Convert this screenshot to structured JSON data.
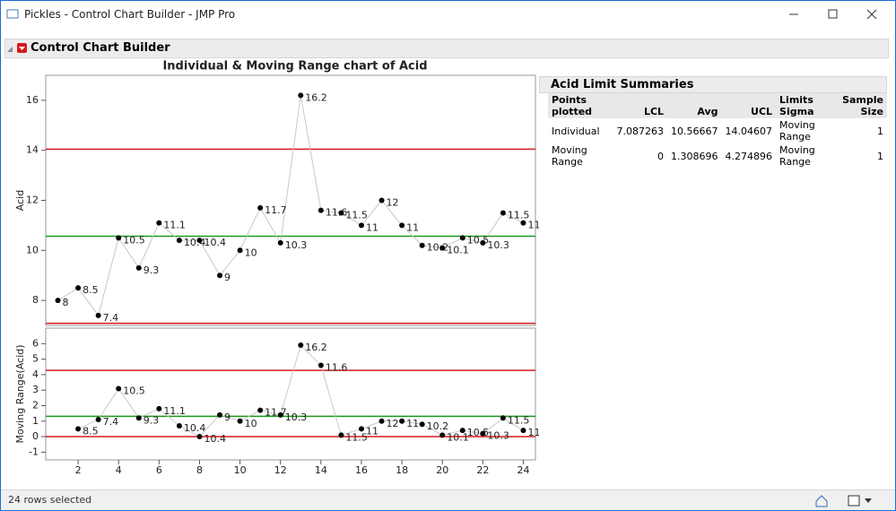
{
  "window": {
    "title": "Pickles - Control Chart Builder - JMP Pro"
  },
  "header": {
    "title": "Control Chart Builder"
  },
  "chart_data": [
    {
      "type": "line",
      "title": "Individual & Moving Range chart of Acid",
      "y_label": "Acid",
      "x": [
        1,
        2,
        3,
        4,
        5,
        6,
        7,
        8,
        9,
        10,
        11,
        12,
        13,
        14,
        15,
        16,
        17,
        18,
        19,
        20,
        21,
        22,
        23,
        24
      ],
      "series": [
        {
          "color": "#c8c8c8",
          "values": [
            8,
            8.5,
            7.4,
            10.5,
            9.3,
            11.1,
            10.4,
            10.4,
            9,
            10,
            11.7,
            10.3,
            16.2,
            11.6,
            11.5,
            11,
            12,
            11,
            10.2,
            10.1,
            10.5,
            10.3,
            11.5,
            11.1
          ]
        }
      ],
      "marker_color": "#000000",
      "limit_color": "#d7191c",
      "center_color": "#1a9a1a",
      "xlim": [
        0.4,
        24.6
      ],
      "ylim": [
        7,
        17
      ],
      "yticks": [
        8,
        10,
        12,
        14,
        16
      ]
    },
    {
      "type": "line",
      "y_label": "Moving Range(Acid)",
      "x": [
        1,
        2,
        3,
        4,
        5,
        6,
        7,
        8,
        9,
        10,
        11,
        12,
        13,
        14,
        15,
        16,
        17,
        18,
        19,
        20,
        21,
        22,
        23,
        24
      ],
      "series": [
        {
          "color": "#c8c8c8",
          "values": [
            null,
            0.5,
            1.1,
            3.1,
            1.2,
            1.8,
            0.7,
            0,
            1.4,
            1,
            1.7,
            1.4,
            5.9,
            4.6,
            0.1,
            0.5,
            1,
            1,
            0.8,
            0.1,
            0.4,
            0.2,
            1.2,
            0.4
          ]
        }
      ],
      "marker_color": "#000000",
      "limit_color": "#d7191c",
      "center_color": "#1a9a1a",
      "xlim": [
        0.4,
        24.6
      ],
      "xticks": [
        2,
        4,
        6,
        8,
        10,
        12,
        14,
        16,
        18,
        20,
        22,
        24
      ],
      "ylim": [
        -1.5,
        7
      ],
      "yticks": [
        -1,
        0,
        1,
        2,
        3,
        4,
        5,
        6
      ]
    }
  ],
  "summary": {
    "title": "Acid Limit Summaries",
    "columns": [
      "Points plotted",
      "LCL",
      "Avg",
      "UCL",
      "Limits Sigma",
      "Sample Size"
    ],
    "rows": [
      [
        "Individual",
        7.087263,
        10.56667,
        14.04607,
        "Moving Range",
        1
      ],
      [
        "Moving Range",
        0,
        1.308696,
        4.274896,
        "Moving Range",
        1
      ]
    ]
  },
  "status": {
    "text": "24 rows selected"
  }
}
